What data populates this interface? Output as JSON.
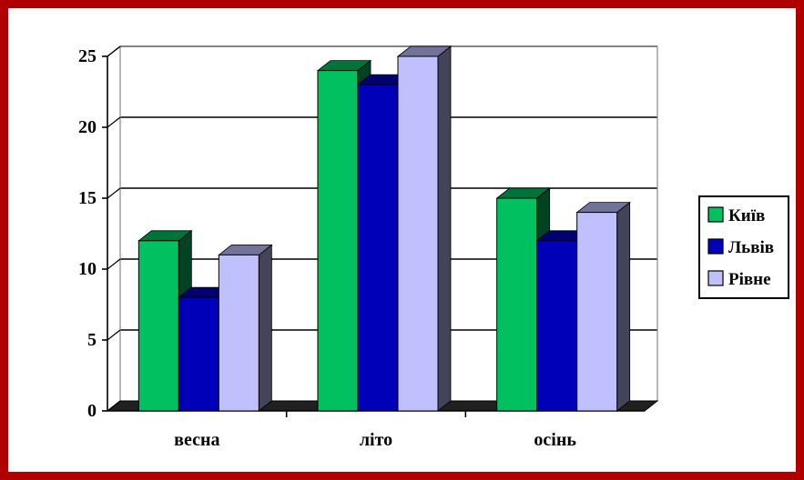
{
  "colors": {
    "border": "#b00000",
    "kyiv": "#00c060",
    "lviv": "#0000b8",
    "rivne": "#c0c0ff"
  },
  "chart_data": {
    "type": "bar",
    "categories": [
      "весна",
      "літо",
      "осінь"
    ],
    "series": [
      {
        "name": "Київ",
        "values": [
          12,
          24,
          15
        ],
        "color": "#00c060"
      },
      {
        "name": "Львів",
        "values": [
          8,
          23,
          12
        ],
        "color": "#0000b8"
      },
      {
        "name": "Рівне",
        "values": [
          11,
          25,
          14
        ],
        "color": "#c0c0ff"
      }
    ],
    "yticks": [
      "0",
      "5",
      "10",
      "15",
      "20",
      "25"
    ],
    "ylim": [
      0,
      25
    ],
    "grid": true,
    "legend": "right",
    "title": "",
    "xlabel": "",
    "ylabel": ""
  }
}
